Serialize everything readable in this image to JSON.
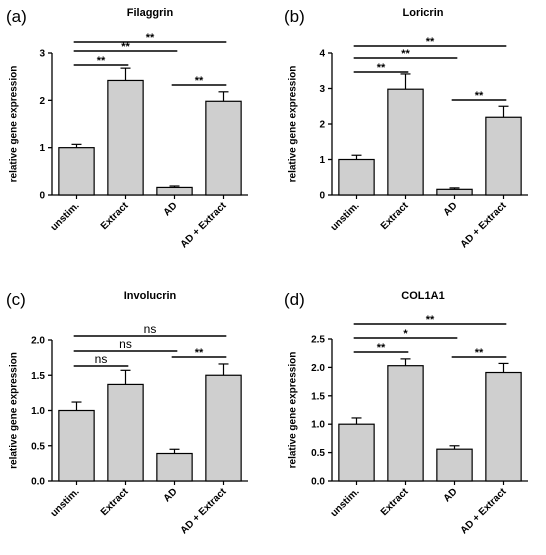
{
  "chart_data": [
    {
      "type": "bar",
      "panel": "(a)",
      "title": "Filaggrin",
      "ylabel": "relative gene expression",
      "categories": [
        "unstim.",
        "Extract",
        "AD",
        "AD + Extract"
      ],
      "values": [
        1.0,
        2.42,
        0.16,
        1.98
      ],
      "errors": [
        0.07,
        0.26,
        0.03,
        0.2
      ],
      "ylim": [
        0,
        3
      ],
      "yticks": [
        "0",
        "1",
        "2",
        "3"
      ],
      "significance": [
        {
          "from": 0,
          "to": 1,
          "label": "**"
        },
        {
          "from": 0,
          "to": 2,
          "label": "**"
        },
        {
          "from": 0,
          "to": 3,
          "label": "**"
        },
        {
          "from": 2,
          "to": 3,
          "label": "**"
        }
      ]
    },
    {
      "type": "bar",
      "panel": "(b)",
      "title": "Loricrin",
      "ylabel": "relative gene expression",
      "categories": [
        "unstim.",
        "Extract",
        "AD",
        "AD + Extract"
      ],
      "values": [
        1.0,
        2.98,
        0.16,
        2.19
      ],
      "errors": [
        0.12,
        0.43,
        0.04,
        0.31
      ],
      "ylim": [
        0,
        4
      ],
      "yticks": [
        "0",
        "1",
        "2",
        "3",
        "4"
      ],
      "significance": [
        {
          "from": 0,
          "to": 1,
          "label": "**"
        },
        {
          "from": 0,
          "to": 2,
          "label": "**"
        },
        {
          "from": 0,
          "to": 3,
          "label": "**"
        },
        {
          "from": 2,
          "to": 3,
          "label": "**"
        }
      ]
    },
    {
      "type": "bar",
      "panel": "(c)",
      "title": "Involucrin",
      "ylabel": "relative gene expression",
      "categories": [
        "unstim.",
        "Extract",
        "AD",
        "AD + Extract"
      ],
      "values": [
        1.0,
        1.37,
        0.39,
        1.5
      ],
      "errors": [
        0.12,
        0.2,
        0.06,
        0.16
      ],
      "ylim": [
        0,
        2.0
      ],
      "yticks": [
        "0.0",
        "0.5",
        "1.0",
        "1.5",
        "2.0"
      ],
      "significance": [
        {
          "from": 0,
          "to": 1,
          "label": "ns"
        },
        {
          "from": 0,
          "to": 2,
          "label": "ns"
        },
        {
          "from": 0,
          "to": 3,
          "label": "ns"
        },
        {
          "from": 2,
          "to": 3,
          "label": "**"
        }
      ]
    },
    {
      "type": "bar",
      "panel": "(d)",
      "title": "COL1A1",
      "ylabel": "relative gene expression",
      "categories": [
        "unstim.",
        "Extract",
        "AD",
        "AD + Extract"
      ],
      "values": [
        1.0,
        2.03,
        0.56,
        1.91
      ],
      "errors": [
        0.11,
        0.12,
        0.06,
        0.16
      ],
      "ylim": [
        0,
        2.5
      ],
      "yticks": [
        "0.0",
        "0.5",
        "1.0",
        "1.5",
        "2.0",
        "2.5"
      ],
      "significance": [
        {
          "from": 0,
          "to": 1,
          "label": "**"
        },
        {
          "from": 0,
          "to": 2,
          "label": "*"
        },
        {
          "from": 0,
          "to": 3,
          "label": "**"
        },
        {
          "from": 2,
          "to": 3,
          "label": "**"
        }
      ]
    }
  ],
  "colors": {
    "bar_fill": "#cfcfcf",
    "stroke": "#000000"
  }
}
